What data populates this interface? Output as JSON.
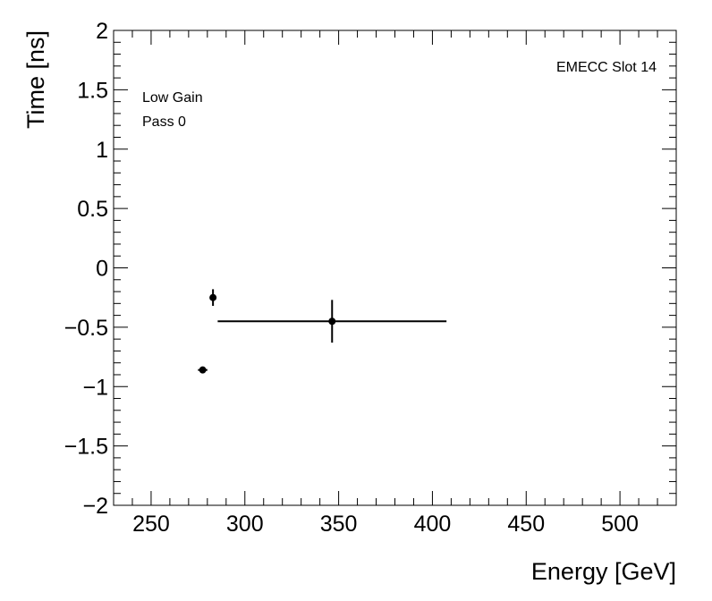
{
  "chart_data": {
    "type": "scatter",
    "title": "",
    "xlabel": "Energy [GeV]",
    "ylabel": "Time [ns]",
    "xlim": [
      230,
      530
    ],
    "ylim": [
      -2,
      2
    ],
    "x_ticks": [
      250,
      300,
      350,
      400,
      450,
      500
    ],
    "x_tick_labels": [
      "250",
      "300",
      "350",
      "400",
      "450",
      "500"
    ],
    "y_ticks": [
      -2,
      -1.5,
      -1,
      -0.5,
      0,
      0.5,
      1,
      1.5,
      2
    ],
    "y_tick_labels": [
      "−2",
      "−1.5",
      "−1",
      "−0.5",
      "0",
      "0.5",
      "1",
      "1.5",
      "2"
    ],
    "grid": false,
    "annotations": {
      "slot_label": "EMECC Slot 14",
      "gain_label": "Low Gain",
      "pass_label": "Pass 0"
    },
    "points": [
      {
        "x": 277.5,
        "y": -0.86,
        "xerr": 2.5,
        "yerr": 0.02
      },
      {
        "x": 283,
        "y": -0.25,
        "xerr": 1.5,
        "yerr": 0.07
      },
      {
        "x": 346.5,
        "y": -0.45,
        "xerr": 61,
        "yerr": 0.18
      }
    ],
    "marker_color": "#000000"
  }
}
